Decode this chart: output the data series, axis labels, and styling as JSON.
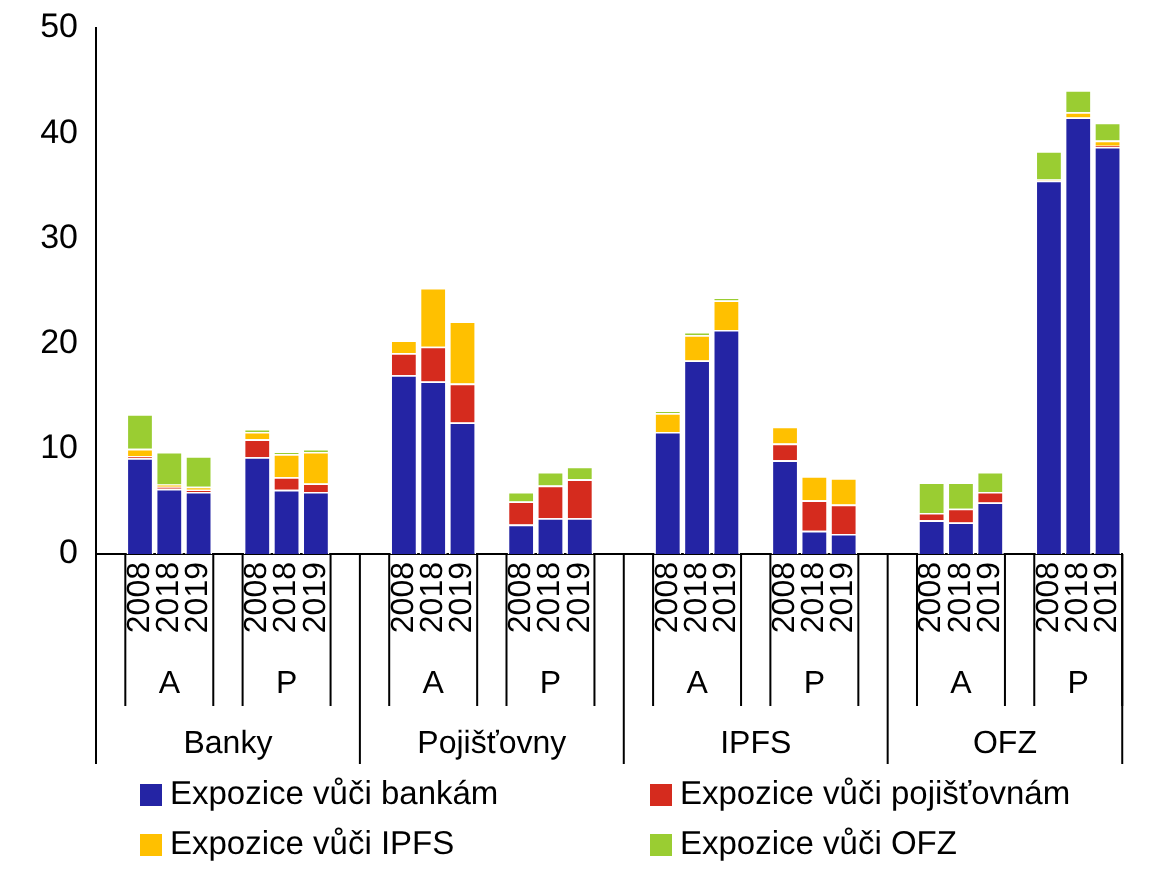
{
  "chart_data": {
    "type": "bar",
    "stacked": true,
    "categories": [
      null,
      "2008",
      "2018",
      "2019",
      null,
      "2008",
      "2018",
      "2019",
      null,
      null,
      "2008",
      "2018",
      "2019",
      null,
      "2008",
      "2018",
      "2019",
      null,
      null,
      "2008",
      "2018",
      "2019",
      null,
      "2008",
      "2018",
      "2019",
      null,
      null,
      "2008",
      "2018",
      "2019",
      null,
      "2008",
      "2018",
      "2019"
    ],
    "series": [
      {
        "name": "Expozice vůči bankám",
        "color": "#2424a4",
        "values": [
          null,
          9.1,
          6.2,
          5.9,
          null,
          9.2,
          6.1,
          5.9,
          null,
          null,
          17.0,
          16.4,
          12.5,
          null,
          2.8,
          3.4,
          3.4,
          null,
          null,
          11.6,
          18.4,
          21.3,
          null,
          8.9,
          2.2,
          1.9,
          null,
          null,
          3.2,
          3.0,
          4.9,
          null,
          35.5,
          41.5,
          38.7
        ]
      },
      {
        "name": "Expozice vůči pojišťovnám",
        "color": "#d52b1e",
        "values": [
          null,
          0.2,
          0.2,
          0.2,
          null,
          1.7,
          1.2,
          0.8,
          null,
          null,
          2.1,
          3.3,
          3.7,
          null,
          2.2,
          3.1,
          3.7,
          null,
          null,
          0,
          0,
          0,
          null,
          1.6,
          2.9,
          2.8,
          null,
          null,
          0.7,
          1.3,
          1.0,
          null,
          null,
          null,
          0.1
        ]
      },
      {
        "name": "Expozice vůči IPFS",
        "color": "#ffc000",
        "values": [
          null,
          0.7,
          0.2,
          0.3,
          null,
          0.7,
          2.2,
          3.0,
          null,
          null,
          1.2,
          5.6,
          5.9,
          null,
          0,
          0,
          0,
          null,
          null,
          1.8,
          2.4,
          2.8,
          null,
          1.6,
          2.3,
          2.5,
          null,
          null,
          0,
          0,
          0,
          null,
          0.1,
          0.5,
          0.5
        ]
      },
      {
        "name": "Expozice vůči OFZ",
        "color": "#9acd32",
        "values": [
          null,
          3.3,
          3.1,
          2.9,
          null,
          0.3,
          0.2,
          0.3,
          null,
          null,
          0,
          null,
          null,
          null,
          0.9,
          1.3,
          1.2,
          null,
          null,
          0.2,
          0.3,
          0.3,
          null,
          0,
          0,
          0,
          null,
          null,
          2.9,
          2.5,
          1.9,
          null,
          2.7,
          2.1,
          1.7
        ]
      }
    ],
    "ylim": [
      0,
      50
    ],
    "yticks": [
      0,
      10,
      20,
      30,
      40,
      50
    ],
    "grid": false,
    "legend": "bottom",
    "annotations": [
      "A",
      "P",
      "A",
      "P",
      "A",
      "P",
      "A",
      "P",
      "Banky",
      "Pojišťovny",
      "IPFS",
      "OFZ"
    ]
  }
}
